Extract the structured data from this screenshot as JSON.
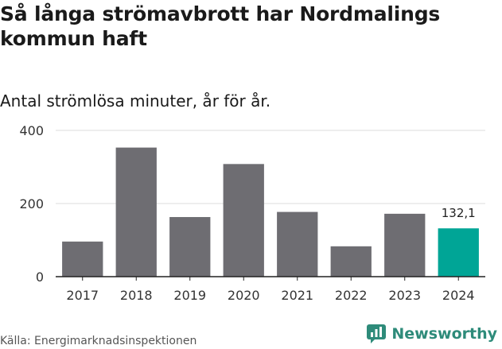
{
  "header": {
    "title": "Så långa strömavbrott har Nordmalings kommun haft",
    "subtitle": "Antal strömlösa minuter, år för år."
  },
  "footer": {
    "source": "Källa: Energimarknadsinspektionen",
    "brand": "Newsworthy"
  },
  "colors": {
    "bar": "#6e6d72",
    "highlight": "#00a596",
    "axis": "#222222",
    "grid": "#dddddd",
    "brand": "#2e8b7a"
  },
  "chart_data": {
    "type": "bar",
    "title": "Så långa strömavbrott har Nordmalings kommun haft",
    "subtitle": "Antal strömlösa minuter, år för år.",
    "xlabel": "",
    "ylabel": "",
    "categories": [
      "2017",
      "2018",
      "2019",
      "2020",
      "2021",
      "2022",
      "2023",
      "2024"
    ],
    "values": [
      96,
      353,
      163,
      308,
      177,
      83,
      172,
      132.1
    ],
    "highlight_index": 7,
    "highlight_label": "132,1",
    "ylim": [
      0,
      400
    ],
    "yticks": [
      0,
      200,
      400
    ],
    "grid": true
  }
}
